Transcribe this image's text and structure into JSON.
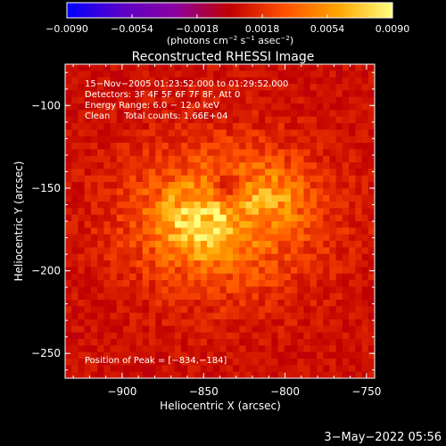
{
  "chart_data": {
    "type": "heatmap",
    "title": "Reconstructed RHESSI Image",
    "xlabel": "Heliocentric X (arcsec)",
    "ylabel": "Heliocentric Y (arcsec)",
    "xlim": [
      -935,
      -745
    ],
    "ylim": [
      -265,
      -75
    ],
    "x_ticks": [
      -900,
      -850,
      -800,
      -750
    ],
    "x_tick_labels": [
      "−900",
      "−850",
      "−800",
      "−750"
    ],
    "y_ticks": [
      -100,
      -150,
      -200,
      -250
    ],
    "y_tick_labels": [
      "−100",
      "−150",
      "−200",
      "−250"
    ],
    "colorbar": {
      "range": [
        -0.009,
        0.009
      ],
      "ticks": [
        -0.009,
        -0.0054,
        -0.0018,
        0.0018,
        0.0054,
        0.009
      ],
      "tick_labels": [
        "−0.0090",
        "−0.0054",
        "−0.0018",
        "0.0018",
        "0.0054",
        "0.0090"
      ],
      "units_parts": [
        "(photons cm",
        "−2",
        " s",
        "−1",
        " asec",
        "−2",
        ")"
      ],
      "colormap": [
        "#0000ff",
        "#5a00c8",
        "#8c00a0",
        "#c00000",
        "#ff5000",
        "#ffa500",
        "#ffff80"
      ]
    },
    "info": [
      "15−Nov−2005 01:23:52.000 to 01:29:52.000",
      "Detectors: 3F 4F 5F 6F 7F 8F, Att 0",
      "Energy Range: 6.0 − 12.0 keV",
      "Clean     Total counts: 1.66E+04"
    ],
    "peak_label": "Position of Peak = [−834,−184]",
    "peak": [
      -834,
      -184
    ],
    "background_level": 0.0005,
    "sources": [
      {
        "x": -838,
        "y": -168,
        "sx": 42,
        "sy": 32,
        "amp": 0.0042
      },
      {
        "x": -858,
        "y": -170,
        "sx": 16,
        "sy": 14,
        "amp": 0.0035
      },
      {
        "x": -808,
        "y": -155,
        "sx": 13,
        "sy": 12,
        "amp": 0.0026
      },
      {
        "x": -842,
        "y": -182,
        "sx": 11,
        "sy": 9,
        "amp": 0.0018
      },
      {
        "x": -835,
        "y": -150,
        "sx": 7,
        "sy": 6,
        "amp": -0.0034
      }
    ]
  },
  "timestamp": "3−May−2022 05:56"
}
